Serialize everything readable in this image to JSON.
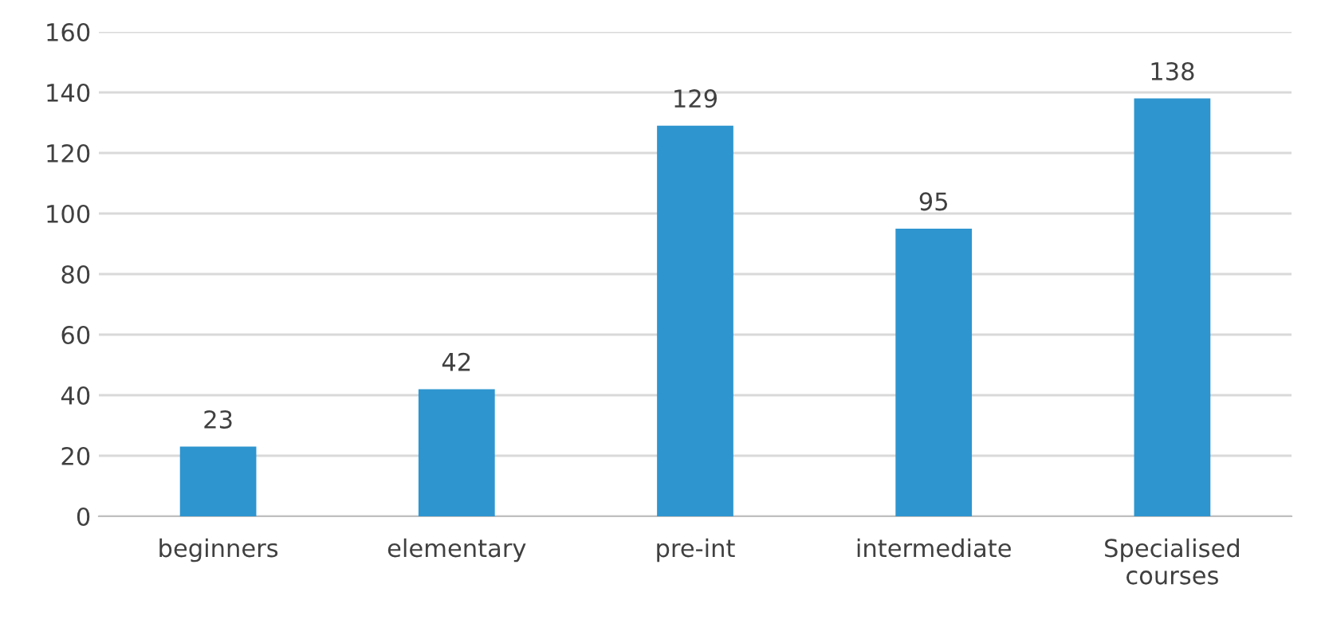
{
  "chart_data": {
    "type": "bar",
    "categories": [
      "beginners",
      "elementary",
      "pre-int",
      "intermediate",
      "Specialised\ncourses"
    ],
    "values": [
      23,
      42,
      129,
      95,
      138
    ],
    "color": "#2e95cf",
    "ylim": [
      0,
      160
    ],
    "yticks": [
      0,
      20,
      40,
      60,
      80,
      100,
      120,
      140,
      160
    ],
    "grid": "y",
    "data_labels": true
  }
}
